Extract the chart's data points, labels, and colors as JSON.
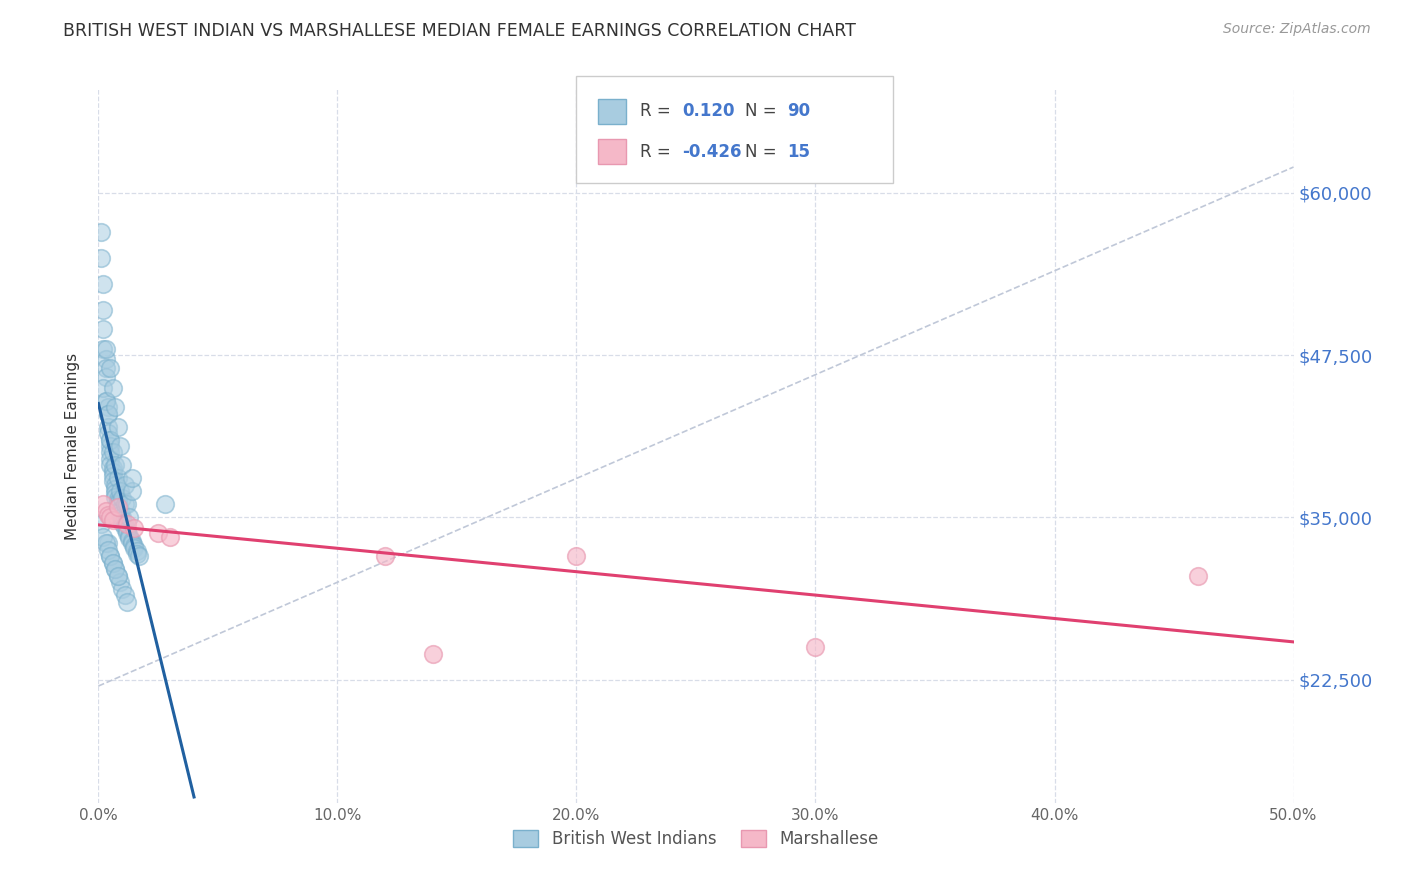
{
  "title": "BRITISH WEST INDIAN VS MARSHALLESE MEDIAN FEMALE EARNINGS CORRELATION CHART",
  "source": "Source: ZipAtlas.com",
  "ylabel": "Median Female Earnings",
  "r_bwi": 0.12,
  "n_bwi": 90,
  "r_marsh": -0.426,
  "n_marsh": 15,
  "bwi_color": "#a8cce0",
  "bwi_edge_color": "#7ab0cc",
  "marsh_color": "#f5b8c8",
  "marsh_edge_color": "#e898b0",
  "bwi_line_color": "#2060a0",
  "marsh_line_color": "#e04070",
  "ref_line_color": "#c0c8d8",
  "text_color": "#333333",
  "axis_label_color": "#4477cc",
  "source_color": "#999999",
  "grid_color": "#d8dde8",
  "legend_label_bwi": "British West Indians",
  "legend_label_marsh": "Marshallese",
  "xlim": [
    0.0,
    0.5
  ],
  "ylim": [
    13000,
    68000
  ],
  "xtick_vals": [
    0.0,
    0.1,
    0.2,
    0.3,
    0.4,
    0.5
  ],
  "xticklabels": [
    "0.0%",
    "10.0%",
    "20.0%",
    "30.0%",
    "40.0%",
    "50.0%"
  ],
  "ytick_vals": [
    22500,
    35000,
    47500,
    60000
  ],
  "ytick_labels": [
    "$22,500",
    "$35,000",
    "$47,500",
    "$60,000"
  ],
  "bwi_x": [
    0.001,
    0.001,
    0.002,
    0.002,
    0.002,
    0.002,
    0.003,
    0.003,
    0.003,
    0.003,
    0.004,
    0.004,
    0.004,
    0.004,
    0.005,
    0.005,
    0.005,
    0.005,
    0.005,
    0.006,
    0.006,
    0.006,
    0.006,
    0.007,
    0.007,
    0.007,
    0.007,
    0.008,
    0.008,
    0.008,
    0.008,
    0.009,
    0.009,
    0.009,
    0.01,
    0.01,
    0.01,
    0.011,
    0.011,
    0.012,
    0.012,
    0.013,
    0.013,
    0.014,
    0.014,
    0.015,
    0.015,
    0.016,
    0.016,
    0.017,
    0.002,
    0.003,
    0.004,
    0.005,
    0.006,
    0.007,
    0.008,
    0.009,
    0.01,
    0.011,
    0.003,
    0.005,
    0.006,
    0.007,
    0.008,
    0.009,
    0.01,
    0.011,
    0.012,
    0.013,
    0.004,
    0.005,
    0.006,
    0.007,
    0.008,
    0.009,
    0.01,
    0.011,
    0.012,
    0.014,
    0.001,
    0.002,
    0.003,
    0.004,
    0.005,
    0.006,
    0.007,
    0.008,
    0.014,
    0.028
  ],
  "bwi_y": [
    57000,
    55000,
    53000,
    51000,
    49500,
    48000,
    47200,
    46500,
    45800,
    44000,
    43500,
    43000,
    42000,
    41500,
    41000,
    40500,
    40000,
    39500,
    39000,
    38800,
    38500,
    38200,
    37800,
    37500,
    37200,
    36900,
    36600,
    36400,
    36200,
    36000,
    35800,
    35600,
    35400,
    35200,
    35000,
    34800,
    34600,
    34400,
    34200,
    34000,
    33800,
    33600,
    33400,
    33200,
    33000,
    32800,
    32600,
    32400,
    32200,
    32000,
    45000,
    44000,
    43000,
    41000,
    40000,
    39000,
    38000,
    37000,
    36500,
    36000,
    48000,
    46500,
    45000,
    43500,
    42000,
    40500,
    39000,
    37500,
    36000,
    35000,
    33000,
    32000,
    31500,
    31000,
    30500,
    30000,
    29500,
    29000,
    28500,
    37000,
    34500,
    33500,
    33000,
    32500,
    32000,
    31500,
    31000,
    30500,
    38000,
    36000
  ],
  "marsh_x": [
    0.002,
    0.003,
    0.004,
    0.005,
    0.006,
    0.008,
    0.012,
    0.015,
    0.025,
    0.03,
    0.12,
    0.2,
    0.3,
    0.46,
    0.14
  ],
  "marsh_y": [
    36000,
    35500,
    35200,
    35000,
    34800,
    35800,
    34500,
    34200,
    33800,
    33500,
    32000,
    32000,
    25000,
    30500,
    24500
  ],
  "bwi_trend_x": [
    0.0,
    0.04
  ],
  "marsh_trend_x": [
    0.0,
    0.5
  ],
  "ref_line_x": [
    0.0,
    0.5
  ],
  "ref_line_y": [
    22000,
    62000
  ]
}
